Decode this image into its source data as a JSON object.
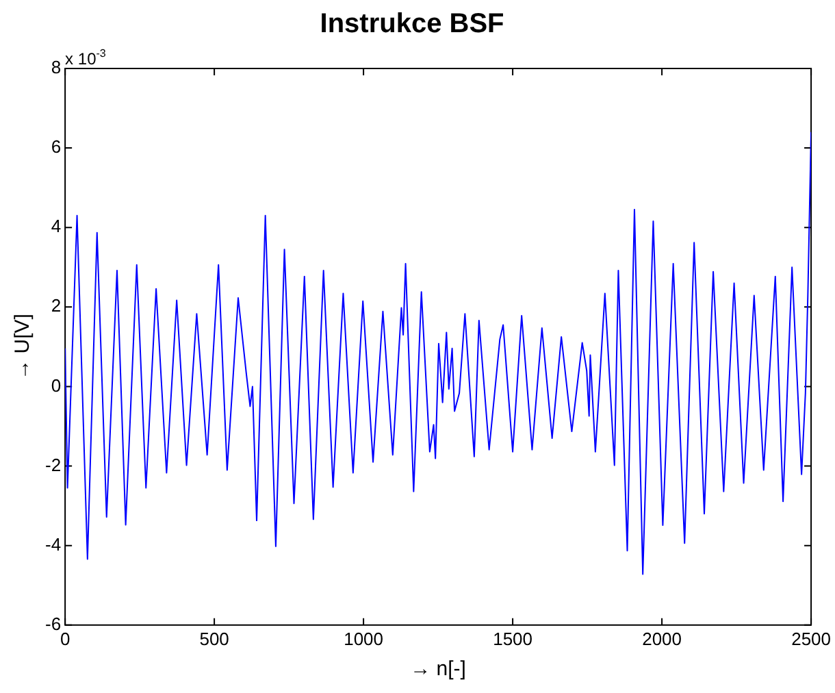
{
  "chart_data": {
    "type": "line",
    "title": "Instrukce BSF",
    "xlabel": "→ n[-]",
    "ylabel": "→ U[V]",
    "annotations": [
      "x 10$^{-3}$"
    ],
    "color": "#0000ff",
    "grid": false,
    "xlim": [
      0,
      2500
    ],
    "xticks": [
      0,
      500,
      1000,
      1500,
      2000,
      2500
    ],
    "ylim": [
      -6,
      8
    ],
    "yticks": [
      -6,
      -4,
      -2,
      0,
      2,
      4,
      6,
      8
    ],
    "x": [
      0,
      8,
      40,
      75,
      107,
      139,
      174,
      203,
      240,
      271,
      305,
      340,
      374,
      407,
      441,
      476,
      514,
      543,
      580,
      607,
      620,
      628,
      642,
      671,
      706,
      735,
      767,
      802,
      832,
      866,
      898,
      932,
      965,
      998,
      1032,
      1065,
      1098,
      1127,
      1133,
      1141,
      1168,
      1194,
      1222,
      1235,
      1241,
      1252,
      1265,
      1278,
      1286,
      1297,
      1305,
      1321,
      1340,
      1371,
      1387,
      1421,
      1457,
      1468,
      1500,
      1530,
      1565,
      1598,
      1632,
      1663,
      1698,
      1733,
      1748,
      1756,
      1760,
      1777,
      1788,
      1809,
      1841,
      1854,
      1884,
      1908,
      1936,
      1971,
      2003,
      2038,
      2076,
      2108,
      2142,
      2172,
      2207,
      2242,
      2274,
      2309,
      2341,
      2380,
      2406,
      2436,
      2468,
      2481,
      2489,
      2500
    ],
    "values": [
      0.96,
      -2.55,
      4.3,
      -4.34,
      3.87,
      -3.28,
      2.92,
      -3.48,
      3.06,
      -2.55,
      2.46,
      -2.17,
      2.17,
      -1.98,
      1.83,
      -1.72,
      3.06,
      -2.1,
      2.23,
      0.34,
      -0.5,
      0,
      -3.37,
      4.3,
      -4.02,
      3.45,
      -2.94,
      2.77,
      -3.34,
      2.92,
      -2.53,
      2.34,
      -2.17,
      2.15,
      -1.9,
      1.89,
      -1.72,
      1.98,
      1.3,
      3.09,
      -2.64,
      2.38,
      -1.64,
      -0.96,
      -1.81,
      1.08,
      -0.4,
      1.36,
      -0.06,
      0.96,
      -0.62,
      -0.17,
      1.83,
      -1.76,
      1.66,
      -1.59,
      1.19,
      1.55,
      -1.64,
      1.78,
      -1.59,
      1.47,
      -1.3,
      1.25,
      -1.13,
      1.1,
      0.4,
      -0.74,
      0.79,
      -1.64,
      -0.28,
      2.34,
      -1.98,
      2.92,
      -4.13,
      4.45,
      -4.72,
      4.16,
      -3.49,
      3.09,
      -3.94,
      3.62,
      -3.2,
      2.89,
      -2.64,
      2.6,
      -2.43,
      2.29,
      -2.1,
      2.77,
      -2.89,
      3.0,
      -2.21,
      -0.17,
      2.26,
      6.4
    ]
  }
}
